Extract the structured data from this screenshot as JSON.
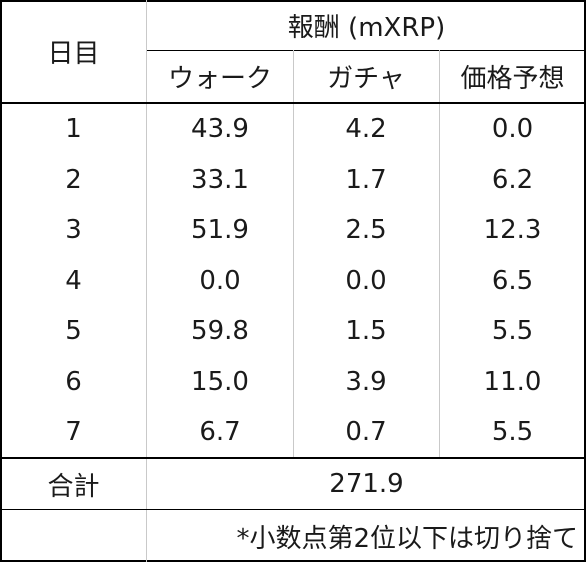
{
  "table": {
    "header": {
      "day_label": "日目",
      "reward_label": "報酬 (mXRP)",
      "columns": [
        "ウォーク",
        "ガチャ",
        "価格予想"
      ]
    },
    "rows": [
      {
        "day": "1",
        "walk": "43.9",
        "gacha": "4.2",
        "price": "0.0"
      },
      {
        "day": "2",
        "walk": "33.1",
        "gacha": "1.7",
        "price": "6.2"
      },
      {
        "day": "3",
        "walk": "51.9",
        "gacha": "2.5",
        "price": "12.3"
      },
      {
        "day": "4",
        "walk": "0.0",
        "gacha": "0.0",
        "price": "6.5"
      },
      {
        "day": "5",
        "walk": "59.8",
        "gacha": "1.5",
        "price": "5.5"
      },
      {
        "day": "6",
        "walk": "15.0",
        "gacha": "3.9",
        "price": "11.0"
      },
      {
        "day": "7",
        "walk": "6.7",
        "gacha": "0.7",
        "price": "5.5"
      }
    ],
    "total": {
      "label": "合計",
      "value": "271.9"
    },
    "note": "*小数点第2位以下は切り捨て"
  }
}
